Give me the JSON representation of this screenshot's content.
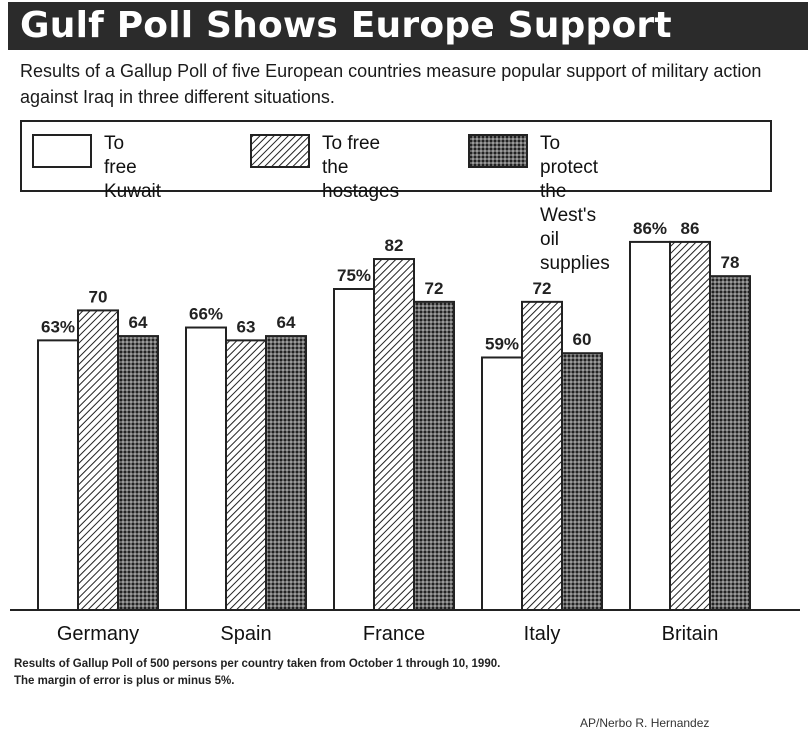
{
  "header": {
    "title": "Gulf Poll Shows Europe Support",
    "subtitle": "Results of a Gallup Poll of five European countries measure popular support of military action against Iraq in three different situations."
  },
  "legend": {
    "items": [
      {
        "label": "To free\nKuwait",
        "pattern": "blank"
      },
      {
        "label": "To free the\nhostages",
        "pattern": "diagonal"
      },
      {
        "label": "To protect the\nWest's oil supplies",
        "pattern": "crosshatch"
      }
    ]
  },
  "chart_data": {
    "type": "bar",
    "categories": [
      "Germany",
      "Spain",
      "France",
      "Italy",
      "Britain"
    ],
    "series": [
      {
        "name": "To free Kuwait",
        "values": [
          63,
          66,
          75,
          59,
          86
        ],
        "labels": [
          "63%",
          "66%",
          "75%",
          "59%",
          "86%"
        ]
      },
      {
        "name": "To free the hostages",
        "values": [
          70,
          63,
          82,
          72,
          86
        ],
        "labels": [
          "70",
          "63",
          "82",
          "72",
          "86"
        ]
      },
      {
        "name": "To protect the West's oil supplies",
        "values": [
          64,
          64,
          72,
          60,
          78
        ],
        "labels": [
          "64",
          "64",
          "72",
          "60",
          "78"
        ]
      }
    ],
    "ylim": [
      0,
      100
    ],
    "grid": false,
    "legend_position": "top"
  },
  "footnote": {
    "line1": "Results of Gallup Poll of 500 persons per country taken from October 1 through 10, 1990.",
    "line2": "The margin of error is plus or minus 5%."
  },
  "credit": "AP/Nerbo R. Hernandez",
  "colors": {
    "title_bg": "#2b2b2b",
    "bar_stroke": "#222222",
    "dark_fill": "#555555"
  }
}
